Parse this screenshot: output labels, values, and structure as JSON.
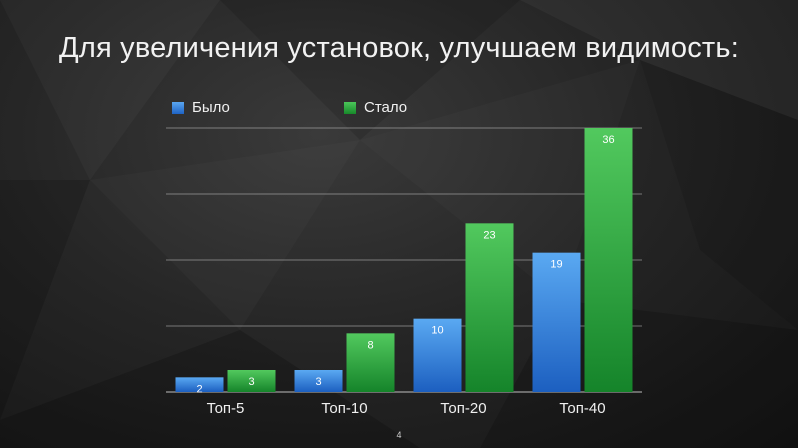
{
  "slide": {
    "title": "Для увеличения установок, улучшаем видимость:",
    "page_number": "4"
  },
  "colors": {
    "blue": "#2f7fd8",
    "green": "#28a03a",
    "text": "#f0f0f0"
  },
  "chart_data": {
    "type": "bar",
    "title": "",
    "xlabel": "",
    "ylabel": "",
    "categories": [
      "Топ-5",
      "Топ-10",
      "Топ-20",
      "Топ-40"
    ],
    "series": [
      {
        "name": "Было",
        "values": [
          2,
          3,
          10,
          19
        ],
        "color": "#2f7fd8"
      },
      {
        "name": "Стало",
        "values": [
          3,
          8,
          23,
          36
        ],
        "color": "#28a03a"
      }
    ],
    "ylim": [
      0,
      36
    ],
    "grid": true,
    "legend": "top-left",
    "data_labels": true
  }
}
